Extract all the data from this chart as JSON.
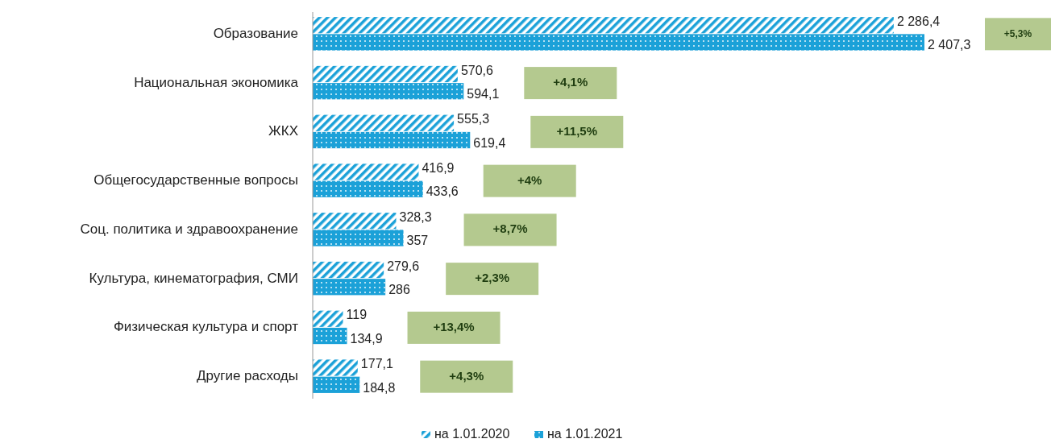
{
  "chart_data": {
    "type": "bar",
    "orientation": "horizontal",
    "categories": [
      "Образование",
      "Национальная экономика",
      "ЖКХ",
      "Общегосударственные вопросы",
      "Соц. политика и здравоохранение",
      "Культура, кинематография, СМИ",
      "Физическая культура и спорт",
      "Другие расходы"
    ],
    "series": [
      {
        "name": "на 1.01.2020",
        "color": "#1ba1d8",
        "values": [
          2286.4,
          570.6,
          555.3,
          416.9,
          328.3,
          279.6,
          119,
          177.1
        ],
        "value_labels": [
          "2 286,4",
          "570,6",
          "555,3",
          "416,9",
          "328,3",
          "279,6",
          "119",
          "177,1"
        ]
      },
      {
        "name": "на 1.01.2021",
        "color": "#1ba1d8",
        "values": [
          2407.3,
          594.1,
          619.4,
          433.6,
          357,
          286,
          134.9,
          184.8
        ],
        "value_labels": [
          "2 407,3",
          "594,1",
          "619,4",
          "433,6",
          "357",
          "286",
          "134,9",
          "184,8"
        ]
      }
    ],
    "annotations": [
      "+5,3%",
      "+4,1%",
      "+11,5%",
      "+4%",
      "+8,7%",
      "+2,3%",
      "+13,4%",
      "+4,3%"
    ],
    "legend": "bottom",
    "grid": false
  }
}
